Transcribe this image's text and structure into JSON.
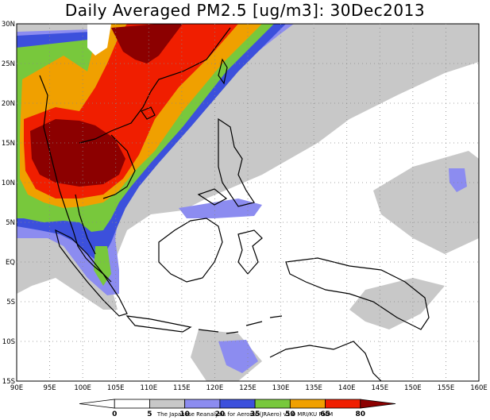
{
  "title": "Daily Averaged PM2.5 [ug/m3]: 30Dec2013",
  "map": {
    "lat_labels": [
      "30N",
      "25N",
      "20N",
      "15N",
      "10N",
      "5N",
      "EQ",
      "5S",
      "10S",
      "15S"
    ],
    "lat_values": [
      30,
      25,
      20,
      15,
      10,
      5,
      0,
      -5,
      -10,
      -15
    ],
    "lon_labels": [
      "90E",
      "95E",
      "100E",
      "105E",
      "110E",
      "115E",
      "120E",
      "125E",
      "130E",
      "135E",
      "140E",
      "145E",
      "150E",
      "155E",
      "160E"
    ],
    "lon_values": [
      90,
      95,
      100,
      105,
      110,
      115,
      120,
      125,
      130,
      135,
      140,
      145,
      150,
      155,
      160
    ],
    "lon_range": [
      90,
      160
    ],
    "lat_range": [
      -15,
      30
    ],
    "grid": "dotted"
  },
  "colorbar": {
    "labels": [
      "0",
      "5",
      "10",
      "20",
      "35",
      "50",
      "65",
      "80"
    ],
    "colors": [
      "#ffffff",
      "#ffffff",
      "#c8c8c8",
      "#8c8cf0",
      "#3c50dc",
      "#78c83c",
      "#f0a000",
      "#f01e00",
      "#8c0000"
    ]
  },
  "credit": "The Japanese Reanalysis for Aerosol (JRAero) v1.0 MRI/KU RIAM"
}
